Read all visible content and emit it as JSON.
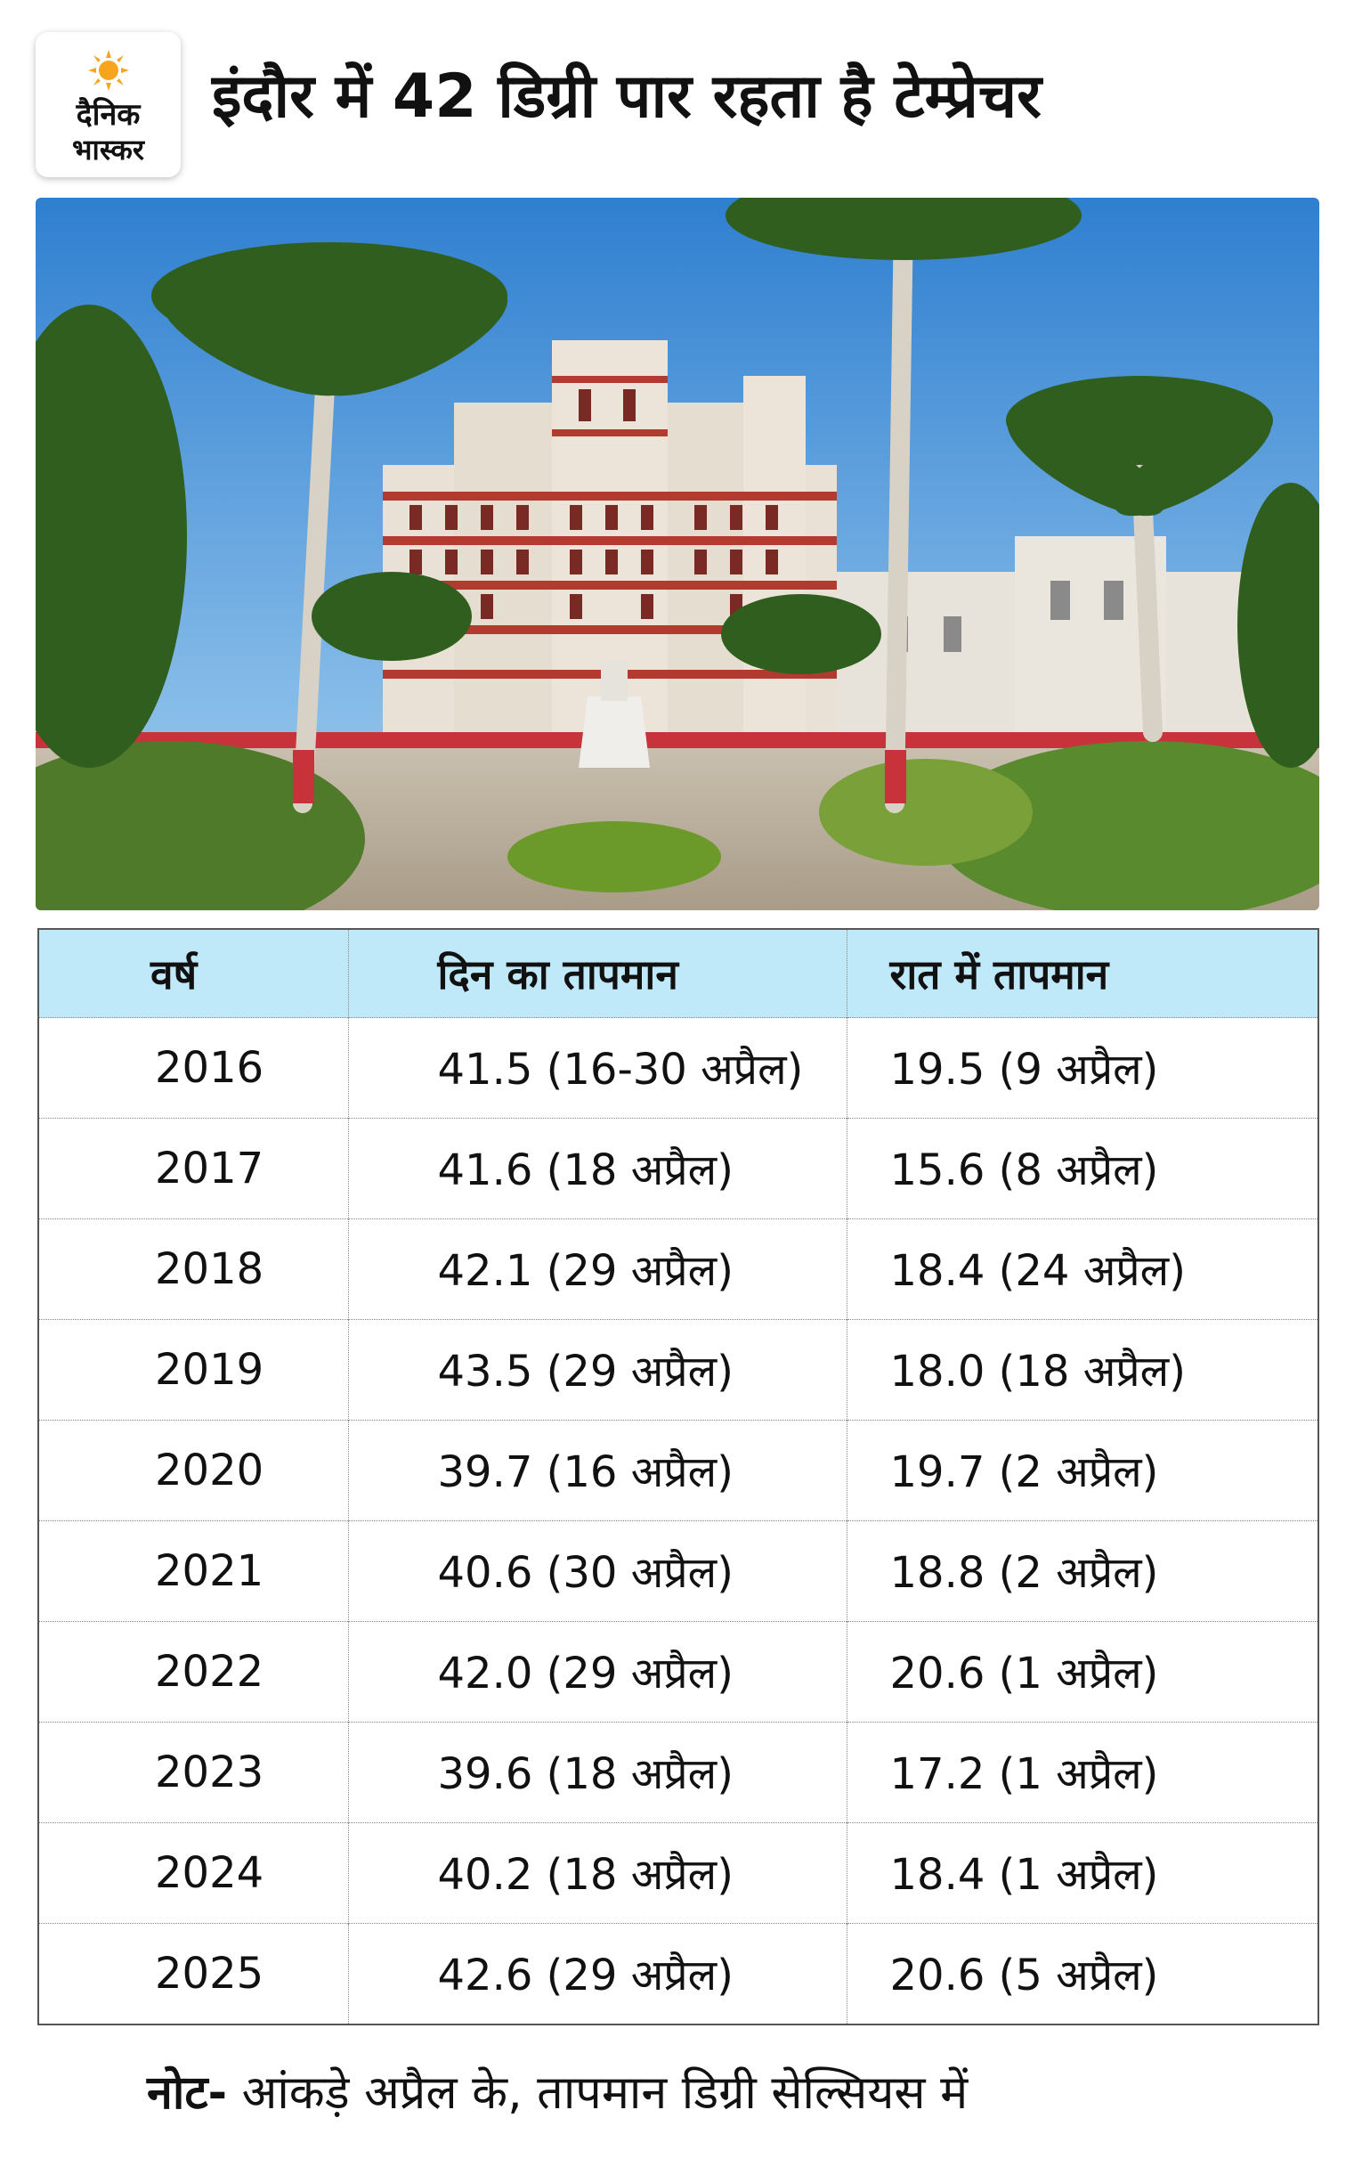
{
  "brand": {
    "line1": "दैनिक",
    "line2": "भास्कर",
    "sun_color": "#f7a51c"
  },
  "headline": "इंदौर में 42 डिग्री पार रहता है टेम्प्रेचर",
  "photo": {
    "subject": "palace-with-palm-trees"
  },
  "table": {
    "header_color": "#bfe8f8",
    "columns": [
      "वर्ष",
      "दिन का तापमान",
      "रात में तापमान"
    ],
    "rows": [
      {
        "year": "2016",
        "day": "41.5 (16-30 अप्रैल)",
        "night": "19.5 (9 अप्रैल)"
      },
      {
        "year": "2017",
        "day": "41.6 (18 अप्रैल)",
        "night": "15.6 (8 अप्रैल)"
      },
      {
        "year": "2018",
        "day": "42.1 (29 अप्रैल)",
        "night": "18.4 (24 अप्रैल)"
      },
      {
        "year": "2019",
        "day": "43.5 (29 अप्रैल)",
        "night": "18.0 (18 अप्रैल)"
      },
      {
        "year": "2020",
        "day": "39.7 (16 अप्रैल)",
        "night": "19.7 (2 अप्रैल)"
      },
      {
        "year": "2021",
        "day": "40.6 (30 अप्रैल)",
        "night": "18.8 (2 अप्रैल)"
      },
      {
        "year": "2022",
        "day": "42.0 (29 अप्रैल)",
        "night": "20.6 (1 अप्रैल)"
      },
      {
        "year": "2023",
        "day": "39.6 (18 अप्रैल)",
        "night": "17.2 (1 अप्रैल)"
      },
      {
        "year": "2024",
        "day": "40.2  (18 अप्रैल)",
        "night": "18.4 (1 अप्रैल)"
      },
      {
        "year": "2025",
        "day": "42.6 (29 अप्रैल)",
        "night": "20.6 (5 अप्रैल)"
      }
    ]
  },
  "note": {
    "prefix": "नोट-",
    "text": " आंकड़े अप्रैल के, तापमान डिग्री सेल्सियस में"
  }
}
